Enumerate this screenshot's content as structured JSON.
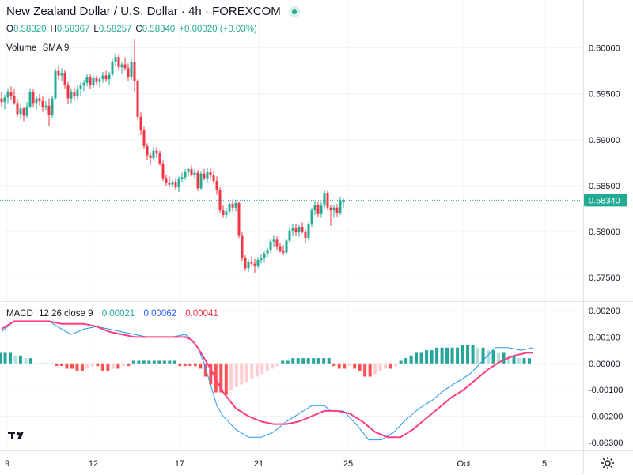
{
  "header": {
    "title": "New Zealand Dollar / U.S. Dollar · 4h · FOREXCOM",
    "ohlc": {
      "o_label": "O",
      "o": "0.58320",
      "h_label": "H",
      "h": "0.58367",
      "l_label": "L",
      "l": "0.58257",
      "c_label": "C",
      "c": "0.58340",
      "change": "+0.00020 (+0.03%)"
    }
  },
  "volume_indicator": {
    "name": "Volume",
    "params": "SMA 9"
  },
  "macd_indicator": {
    "name": "MACD",
    "params": "12 26 close 9",
    "v1": "0.00021",
    "v2": "0.00062",
    "v3": "0.00041",
    "colors": {
      "v1": "#22ab94",
      "v2": "#2962ff",
      "v3": "#f23645"
    }
  },
  "colors": {
    "up": "#22ab94",
    "down": "#f23645",
    "grid": "#f0f3fa",
    "macd_line": "#2196f3",
    "signal_line": "#ff3d83",
    "hist_up_strong": "#26a69a",
    "hist_up_weak": "#b2dfdb",
    "hist_down_strong": "#ff5252",
    "hist_down_weak": "#ffcdd2"
  },
  "icons": {
    "logo": "tradingview-logo-icon",
    "settings": "gear-icon"
  },
  "chart_data": [
    {
      "type": "candlestick",
      "title": "New Zealand Dollar / U.S. Dollar · 4h · FOREXCOM",
      "ylim": [
        0.5725,
        0.6035
      ],
      "y_ticks": [
        "0.60000",
        "0.59500",
        "0.59000",
        "0.58500",
        "0.58000",
        "0.57500"
      ],
      "last_price": "0.58340",
      "x_ticks": [
        "9",
        "12",
        "17",
        "21",
        "25",
        "Oct",
        "5"
      ],
      "grid": true,
      "candles": [
        [
          0.5945,
          0.5952,
          0.5936,
          0.5941
        ],
        [
          0.5941,
          0.5949,
          0.5933,
          0.5946
        ],
        [
          0.5946,
          0.5956,
          0.594,
          0.5952
        ],
        [
          0.5952,
          0.5958,
          0.5943,
          0.5948
        ],
        [
          0.5948,
          0.5955,
          0.5938,
          0.594
        ],
        [
          0.594,
          0.5945,
          0.5925,
          0.5928
        ],
        [
          0.5928,
          0.5938,
          0.5922,
          0.5934
        ],
        [
          0.5934,
          0.5936,
          0.592,
          0.5926
        ],
        [
          0.5926,
          0.5941,
          0.5924,
          0.5936
        ],
        [
          0.5936,
          0.5956,
          0.5934,
          0.5952
        ],
        [
          0.5952,
          0.5955,
          0.5935,
          0.594
        ],
        [
          0.594,
          0.5948,
          0.5933,
          0.5945
        ],
        [
          0.5945,
          0.595,
          0.5937,
          0.5942
        ],
        [
          0.5942,
          0.5947,
          0.593,
          0.5935
        ],
        [
          0.5935,
          0.5942,
          0.5932,
          0.5937
        ],
        [
          0.5937,
          0.5945,
          0.5915,
          0.5927
        ],
        [
          0.5927,
          0.5948,
          0.5924,
          0.5945
        ],
        [
          0.5945,
          0.5978,
          0.5943,
          0.5975
        ],
        [
          0.5975,
          0.598,
          0.5965,
          0.597
        ],
        [
          0.597,
          0.5978,
          0.5964,
          0.5973
        ],
        [
          0.5973,
          0.5976,
          0.5956,
          0.596
        ],
        [
          0.596,
          0.5963,
          0.5939,
          0.5945
        ],
        [
          0.5945,
          0.5956,
          0.594,
          0.5952
        ],
        [
          0.5952,
          0.5957,
          0.5943,
          0.5948
        ],
        [
          0.5948,
          0.596,
          0.5944,
          0.5955
        ],
        [
          0.5955,
          0.5963,
          0.5948,
          0.5959
        ],
        [
          0.5959,
          0.5965,
          0.5953,
          0.5962
        ],
        [
          0.5962,
          0.5972,
          0.5958,
          0.5968
        ],
        [
          0.5968,
          0.5971,
          0.5955,
          0.596
        ],
        [
          0.596,
          0.597,
          0.5957,
          0.5967
        ],
        [
          0.5967,
          0.597,
          0.596,
          0.5963
        ],
        [
          0.5963,
          0.5968,
          0.5957,
          0.5966
        ],
        [
          0.5966,
          0.5974,
          0.5962,
          0.597
        ],
        [
          0.597,
          0.5975,
          0.5963,
          0.5966
        ],
        [
          0.5966,
          0.5974,
          0.596,
          0.5971
        ],
        [
          0.5971,
          0.5988,
          0.5969,
          0.5985
        ],
        [
          0.5985,
          0.5994,
          0.5981,
          0.599
        ],
        [
          0.599,
          0.5993,
          0.5975,
          0.5979
        ],
        [
          0.5979,
          0.5985,
          0.5972,
          0.5982
        ],
        [
          0.5982,
          0.599,
          0.5975,
          0.5978
        ],
        [
          0.5978,
          0.5983,
          0.5964,
          0.5968
        ],
        [
          0.5968,
          0.5989,
          0.5965,
          0.5985
        ],
        [
          0.5985,
          0.601,
          0.5952,
          0.5964
        ],
        [
          0.5964,
          0.5966,
          0.5922,
          0.5925
        ],
        [
          0.5925,
          0.593,
          0.5905,
          0.591
        ],
        [
          0.591,
          0.5914,
          0.589,
          0.5893
        ],
        [
          0.5893,
          0.5896,
          0.5878,
          0.5883
        ],
        [
          0.5883,
          0.5886,
          0.5872,
          0.588
        ],
        [
          0.588,
          0.5892,
          0.5877,
          0.5888
        ],
        [
          0.5888,
          0.5892,
          0.588,
          0.5885
        ],
        [
          0.5885,
          0.5888,
          0.5872,
          0.5874
        ],
        [
          0.5874,
          0.5877,
          0.5855,
          0.5858
        ],
        [
          0.5858,
          0.5862,
          0.585,
          0.5853
        ],
        [
          0.5853,
          0.586,
          0.5848,
          0.5851
        ],
        [
          0.5851,
          0.5856,
          0.5848,
          0.5854
        ],
        [
          0.5854,
          0.5858,
          0.5845,
          0.5848
        ],
        [
          0.5848,
          0.586,
          0.5843,
          0.5857
        ],
        [
          0.5857,
          0.5864,
          0.5854,
          0.5859
        ],
        [
          0.5859,
          0.5868,
          0.5856,
          0.5865
        ],
        [
          0.5865,
          0.587,
          0.586,
          0.5868
        ],
        [
          0.5868,
          0.5872,
          0.586,
          0.5862
        ],
        [
          0.5862,
          0.5868,
          0.5858,
          0.5864
        ],
        [
          0.5864,
          0.5867,
          0.5844,
          0.5847
        ],
        [
          0.5847,
          0.5866,
          0.5845,
          0.5863
        ],
        [
          0.5863,
          0.5868,
          0.5856,
          0.5858
        ],
        [
          0.5858,
          0.5869,
          0.5854,
          0.5865
        ],
        [
          0.5865,
          0.587,
          0.5858,
          0.5861
        ],
        [
          0.5861,
          0.5866,
          0.5852,
          0.5855
        ],
        [
          0.5855,
          0.586,
          0.584,
          0.5845
        ],
        [
          0.5845,
          0.5848,
          0.582,
          0.5823
        ],
        [
          0.5823,
          0.5828,
          0.5815,
          0.5818
        ],
        [
          0.5818,
          0.5826,
          0.5814,
          0.5822
        ],
        [
          0.5822,
          0.5832,
          0.5819,
          0.583
        ],
        [
          0.583,
          0.5835,
          0.5822,
          0.5826
        ],
        [
          0.5826,
          0.5834,
          0.5822,
          0.5831
        ],
        [
          0.5831,
          0.5833,
          0.5793,
          0.5796
        ],
        [
          0.5796,
          0.5799,
          0.5768,
          0.5771
        ],
        [
          0.5771,
          0.5774,
          0.5757,
          0.576
        ],
        [
          0.576,
          0.5769,
          0.5756,
          0.5767
        ],
        [
          0.5767,
          0.5773,
          0.5762,
          0.5765
        ],
        [
          0.5765,
          0.577,
          0.5755,
          0.5763
        ],
        [
          0.5763,
          0.5772,
          0.576,
          0.5769
        ],
        [
          0.5769,
          0.5775,
          0.5765,
          0.5771
        ],
        [
          0.5771,
          0.5778,
          0.5766,
          0.5776
        ],
        [
          0.5776,
          0.5782,
          0.5772,
          0.578
        ],
        [
          0.578,
          0.5792,
          0.5777,
          0.5789
        ],
        [
          0.5789,
          0.5796,
          0.5783,
          0.5791
        ],
        [
          0.5791,
          0.5795,
          0.578,
          0.5784
        ],
        [
          0.5784,
          0.5788,
          0.5777,
          0.5779
        ],
        [
          0.5779,
          0.5785,
          0.5774,
          0.5777
        ],
        [
          0.5777,
          0.5792,
          0.5775,
          0.579
        ],
        [
          0.579,
          0.5805,
          0.5787,
          0.5801
        ],
        [
          0.5801,
          0.5808,
          0.5795,
          0.5804
        ],
        [
          0.5804,
          0.5808,
          0.5795,
          0.5799
        ],
        [
          0.5799,
          0.5807,
          0.5794,
          0.5805
        ],
        [
          0.5805,
          0.581,
          0.5798,
          0.58
        ],
        [
          0.58,
          0.5802,
          0.5788,
          0.5793
        ],
        [
          0.5793,
          0.581,
          0.579,
          0.5808
        ],
        [
          0.5808,
          0.5826,
          0.5805,
          0.5823
        ],
        [
          0.5823,
          0.5834,
          0.5818,
          0.5829
        ],
        [
          0.5829,
          0.5832,
          0.5816,
          0.5819
        ],
        [
          0.5819,
          0.5832,
          0.5815,
          0.5828
        ],
        [
          0.5828,
          0.5845,
          0.5825,
          0.5842
        ],
        [
          0.5842,
          0.5844,
          0.5823,
          0.5826
        ],
        [
          0.5826,
          0.5829,
          0.5806,
          0.5823
        ],
        [
          0.5823,
          0.5829,
          0.5815,
          0.5826
        ],
        [
          0.5826,
          0.583,
          0.5816,
          0.582
        ],
        [
          0.582,
          0.5838,
          0.5818,
          0.5834
        ],
        [
          0.5832,
          0.58367,
          0.58257,
          0.5834
        ]
      ]
    },
    {
      "type": "line",
      "title": "MACD",
      "ylim": [
        -0.0033,
        0.0023
      ],
      "y_ticks": [
        "0.00200",
        "0.00100",
        "0.00000",
        "-0.00100",
        "-0.00200",
        "-0.00300"
      ],
      "series": [
        {
          "name": "MACD",
          "points": [
            [
              0,
              0.0012
            ],
            [
              4,
              0.0016
            ],
            [
              10,
              0.0016
            ],
            [
              15,
              0.0016
            ],
            [
              19,
              0.0013
            ],
            [
              22,
              0.0011
            ],
            [
              26,
              0.0013
            ],
            [
              30,
              0.0014
            ],
            [
              34,
              0.0013
            ],
            [
              38,
              0.0012
            ],
            [
              42,
              0.0011
            ],
            [
              46,
              0.001
            ],
            [
              50,
              0.001
            ],
            [
              54,
              0.001
            ],
            [
              58,
              0.0011
            ],
            [
              60,
              0.0009
            ],
            [
              62,
              0.0006
            ],
            [
              64,
              0.0
            ],
            [
              66,
              -0.0008
            ],
            [
              68,
              -0.0016
            ],
            [
              70,
              -0.002
            ],
            [
              74,
              -0.0025
            ],
            [
              78,
              -0.0028
            ],
            [
              82,
              -0.0028
            ],
            [
              86,
              -0.0026
            ],
            [
              90,
              -0.0022
            ],
            [
              94,
              -0.0019
            ],
            [
              98,
              -0.0016
            ],
            [
              102,
              -0.0016
            ],
            [
              104,
              -0.0018
            ],
            [
              108,
              -0.0018
            ],
            [
              112,
              -0.0023
            ],
            [
              116,
              -0.0029
            ],
            [
              120,
              -0.0029
            ],
            [
              124,
              -0.0026
            ],
            [
              128,
              -0.0021
            ],
            [
              132,
              -0.0017
            ],
            [
              136,
              -0.0014
            ],
            [
              140,
              -0.001
            ],
            [
              144,
              -0.0007
            ],
            [
              148,
              -0.0004
            ],
            [
              152,
              0.0001
            ],
            [
              156,
              0.0006
            ],
            [
              160,
              0.0006
            ],
            [
              164,
              0.0005
            ],
            [
              168,
              0.0006
            ]
          ]
        },
        {
          "name": "Signal",
          "points": [
            [
              0,
              0.0013
            ],
            [
              4,
              0.0016
            ],
            [
              10,
              0.0016
            ],
            [
              15,
              0.0016
            ],
            [
              19,
              0.0015
            ],
            [
              22,
              0.0015
            ],
            [
              26,
              0.0015
            ],
            [
              30,
              0.0014
            ],
            [
              34,
              0.0012
            ],
            [
              38,
              0.0011
            ],
            [
              42,
              0.001
            ],
            [
              46,
              0.001
            ],
            [
              50,
              0.001
            ],
            [
              54,
              0.001
            ],
            [
              58,
              0.001
            ],
            [
              60,
              0.0009
            ],
            [
              62,
              0.0006
            ],
            [
              64,
              0.0002
            ],
            [
              66,
              -0.0002
            ],
            [
              70,
              -0.0011
            ],
            [
              74,
              -0.0017
            ],
            [
              78,
              -0.002
            ],
            [
              82,
              -0.0022
            ],
            [
              86,
              -0.0023
            ],
            [
              90,
              -0.0023
            ],
            [
              94,
              -0.0022
            ],
            [
              98,
              -0.002
            ],
            [
              102,
              -0.0018
            ],
            [
              106,
              -0.0018
            ],
            [
              110,
              -0.0019
            ],
            [
              114,
              -0.0022
            ],
            [
              118,
              -0.0026
            ],
            [
              122,
              -0.0028
            ],
            [
              126,
              -0.0028
            ],
            [
              130,
              -0.0025
            ],
            [
              134,
              -0.0021
            ],
            [
              138,
              -0.0017
            ],
            [
              142,
              -0.0013
            ],
            [
              146,
              -0.001
            ],
            [
              150,
              -0.0006
            ],
            [
              154,
              -0.0002
            ],
            [
              158,
              0.0001
            ],
            [
              162,
              0.0003
            ],
            [
              166,
              0.0004
            ],
            [
              168,
              0.0004
            ]
          ]
        }
      ],
      "histogram": [
        0.0004,
        0.0004,
        0.0004,
        0.0003,
        0.0003,
        0.0002,
        0.0002,
        0.0,
        0.0,
        0.0,
        0.0,
        -0.0001,
        -0.0001,
        -0.0002,
        -0.0002,
        -0.0003,
        -0.0003,
        -0.0002,
        -0.0001,
        -0.0001,
        -0.0003,
        -0.0003,
        -0.0002,
        -0.0002,
        -0.0001,
        -0.0001,
        0.0001,
        0.0001,
        0.0001,
        0.0001,
        0.0001,
        0.0001,
        0.0001,
        0.0001,
        0.0001,
        -0.0001,
        -0.0001,
        -0.0001,
        -0.0001,
        -0.0002,
        -0.0005,
        -0.0008,
        -0.0011,
        -0.0011,
        -0.0012,
        -0.001,
        -0.0009,
        -0.0008,
        -0.0007,
        -0.0006,
        -0.0005,
        -0.0004,
        -0.0003,
        -0.0002,
        -0.0001,
        0.0001,
        0.0001,
        0.0002,
        0.0002,
        0.0002,
        0.0002,
        0.0002,
        0.0002,
        0.0002,
        0.0002,
        -0.0001,
        -0.0002,
        -0.0002,
        -0.0001,
        -0.0002,
        -0.0003,
        -0.0005,
        -0.0005,
        -0.0004,
        -0.0003,
        -0.0002,
        -0.0002,
        -0.0001,
        0.0001,
        0.0002,
        0.0003,
        0.0004,
        0.0004,
        0.0005,
        0.0005,
        0.0006,
        0.0006,
        0.0006,
        0.0006,
        0.0006,
        0.0007,
        0.0007,
        0.0007,
        0.0006,
        0.0006,
        0.0005,
        0.0005,
        0.0004,
        0.0004,
        0.0003,
        0.0003,
        0.0002,
        0.0002,
        0.0002
      ]
    }
  ]
}
